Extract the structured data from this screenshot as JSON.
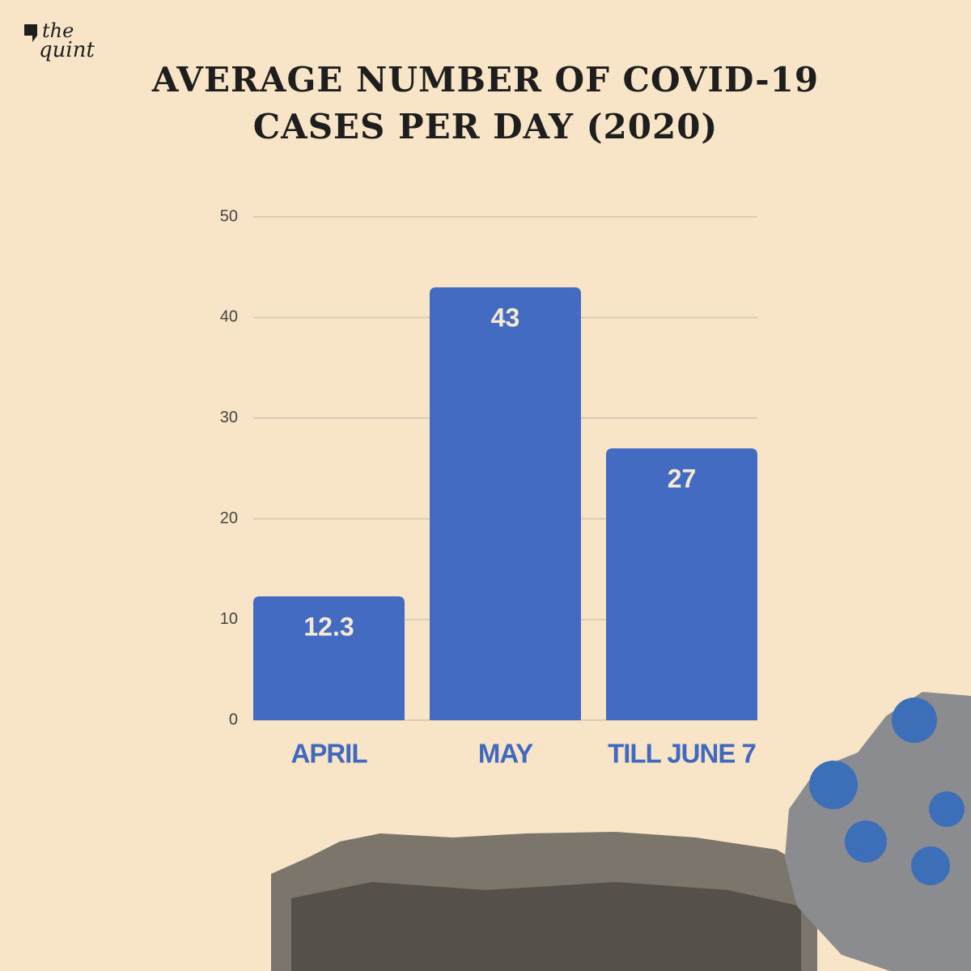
{
  "brand": [
    "the",
    "quint"
  ],
  "chart_data": {
    "type": "bar",
    "title": "AVERAGE NUMBER OF COVID-19 CASES PER DAY (2020)",
    "categories": [
      "APRIL",
      "MAY",
      "TILL JUNE 7"
    ],
    "values": [
      12.3,
      43,
      27
    ],
    "color": "#426bc1",
    "ylim": [
      0,
      50
    ],
    "yticks": [
      0,
      10,
      20,
      30,
      40,
      50
    ],
    "grid": true
  }
}
